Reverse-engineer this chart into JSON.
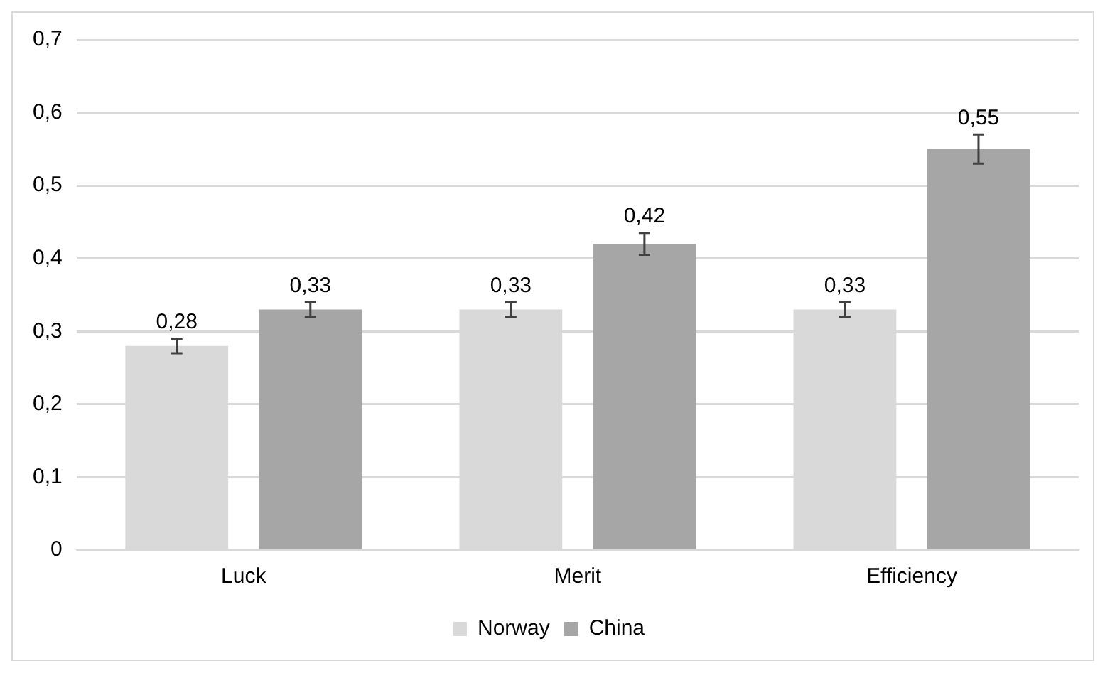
{
  "chart_data": {
    "type": "bar",
    "categories": [
      "Luck",
      "Merit",
      "Efficiency"
    ],
    "series": [
      {
        "name": "Norway",
        "color": "#d9d9d9",
        "values": [
          0.28,
          0.33,
          0.33
        ],
        "errors": [
          0.01,
          0.01,
          0.01
        ],
        "value_labels": [
          "0,28",
          "0,33",
          "0,33"
        ]
      },
      {
        "name": "China",
        "color": "#a6a6a6",
        "values": [
          0.33,
          0.42,
          0.55
        ],
        "errors": [
          0.01,
          0.015,
          0.02
        ],
        "value_labels": [
          "0,33",
          "0,42",
          "0,55"
        ]
      }
    ],
    "ylim": [
      0,
      0.7
    ],
    "yticks": [
      0,
      {
        "value": 0.1,
        "label": "0,1"
      },
      {
        "value": 0.2,
        "label": "0,2"
      },
      {
        "value": 0.3,
        "label": "0,3"
      },
      {
        "value": 0.4,
        "label": "0,4"
      },
      {
        "value": 0.5,
        "label": "0,5"
      },
      {
        "value": 0.6,
        "label": "0,6"
      },
      {
        "value": 0.7,
        "label": "0,7"
      }
    ],
    "grid": "y",
    "legend": "bottom"
  }
}
